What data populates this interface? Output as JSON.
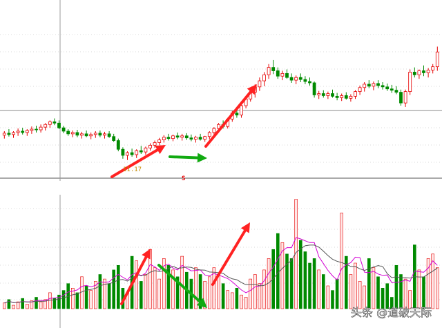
{
  "chart_data": [
    {
      "panel": "price",
      "type": "candlestick",
      "title": "",
      "xlabel": "",
      "ylabel": "",
      "low_label": "11.17",
      "marker_label": "S",
      "ylim": [
        10.9,
        13.4
      ],
      "grid": true,
      "candles": [
        {
          "o": 11.54,
          "h": 11.6,
          "l": 11.49,
          "c": 11.57
        },
        {
          "o": 11.57,
          "h": 11.63,
          "l": 11.52,
          "c": 11.55
        },
        {
          "o": 11.55,
          "h": 11.6,
          "l": 11.5,
          "c": 11.58
        },
        {
          "o": 11.58,
          "h": 11.64,
          "l": 11.53,
          "c": 11.6
        },
        {
          "o": 11.6,
          "h": 11.65,
          "l": 11.55,
          "c": 11.58
        },
        {
          "o": 11.58,
          "h": 11.63,
          "l": 11.53,
          "c": 11.61
        },
        {
          "o": 11.61,
          "h": 11.67,
          "l": 11.56,
          "c": 11.63
        },
        {
          "o": 11.63,
          "h": 11.68,
          "l": 11.58,
          "c": 11.62
        },
        {
          "o": 11.62,
          "h": 11.7,
          "l": 11.58,
          "c": 11.66
        },
        {
          "o": 11.66,
          "h": 11.72,
          "l": 11.61,
          "c": 11.7
        },
        {
          "o": 11.7,
          "h": 11.76,
          "l": 11.65,
          "c": 11.74
        },
        {
          "o": 11.74,
          "h": 11.79,
          "l": 11.69,
          "c": 11.72
        },
        {
          "o": 11.72,
          "h": 11.76,
          "l": 11.63,
          "c": 11.65
        },
        {
          "o": 11.65,
          "h": 11.68,
          "l": 11.57,
          "c": 11.6
        },
        {
          "o": 11.6,
          "h": 11.63,
          "l": 11.53,
          "c": 11.56
        },
        {
          "o": 11.56,
          "h": 11.61,
          "l": 11.51,
          "c": 11.58
        },
        {
          "o": 11.58,
          "h": 11.62,
          "l": 11.51,
          "c": 11.54
        },
        {
          "o": 11.54,
          "h": 11.59,
          "l": 11.49,
          "c": 11.56
        },
        {
          "o": 11.56,
          "h": 11.61,
          "l": 11.51,
          "c": 11.53
        },
        {
          "o": 11.53,
          "h": 11.58,
          "l": 11.48,
          "c": 11.55
        },
        {
          "o": 11.55,
          "h": 11.6,
          "l": 11.5,
          "c": 11.57
        },
        {
          "o": 11.57,
          "h": 11.61,
          "l": 11.51,
          "c": 11.54
        },
        {
          "o": 11.54,
          "h": 11.59,
          "l": 11.49,
          "c": 11.56
        },
        {
          "o": 11.56,
          "h": 11.6,
          "l": 11.5,
          "c": 11.52
        },
        {
          "o": 11.52,
          "h": 11.56,
          "l": 11.44,
          "c": 11.46
        },
        {
          "o": 11.46,
          "h": 11.49,
          "l": 11.3,
          "c": 11.33
        },
        {
          "o": 11.33,
          "h": 11.36,
          "l": 11.19,
          "c": 11.24
        },
        {
          "o": 11.24,
          "h": 11.3,
          "l": 11.17,
          "c": 11.28
        },
        {
          "o": 11.28,
          "h": 11.34,
          "l": 11.22,
          "c": 11.25
        },
        {
          "o": 11.25,
          "h": 11.33,
          "l": 11.2,
          "c": 11.31
        },
        {
          "o": 11.31,
          "h": 11.38,
          "l": 11.26,
          "c": 11.29
        },
        {
          "o": 11.29,
          "h": 11.37,
          "l": 11.25,
          "c": 11.35
        },
        {
          "o": 11.35,
          "h": 11.42,
          "l": 11.31,
          "c": 11.39
        },
        {
          "o": 11.39,
          "h": 11.46,
          "l": 11.35,
          "c": 11.43
        },
        {
          "o": 11.43,
          "h": 11.5,
          "l": 11.39,
          "c": 11.47
        },
        {
          "o": 11.47,
          "h": 11.54,
          "l": 11.43,
          "c": 11.51
        },
        {
          "o": 11.51,
          "h": 11.56,
          "l": 11.46,
          "c": 11.49
        },
        {
          "o": 11.49,
          "h": 11.55,
          "l": 11.45,
          "c": 11.53
        },
        {
          "o": 11.53,
          "h": 11.58,
          "l": 11.48,
          "c": 11.51
        },
        {
          "o": 11.51,
          "h": 11.56,
          "l": 11.46,
          "c": 11.53
        },
        {
          "o": 11.53,
          "h": 11.57,
          "l": 11.47,
          "c": 11.5
        },
        {
          "o": 11.5,
          "h": 11.55,
          "l": 11.45,
          "c": 11.48
        },
        {
          "o": 11.48,
          "h": 11.53,
          "l": 11.43,
          "c": 11.51
        },
        {
          "o": 11.51,
          "h": 11.56,
          "l": 11.46,
          "c": 11.48
        },
        {
          "o": 11.48,
          "h": 11.53,
          "l": 11.44,
          "c": 11.52
        },
        {
          "o": 11.52,
          "h": 11.6,
          "l": 11.48,
          "c": 11.58
        },
        {
          "o": 11.58,
          "h": 11.66,
          "l": 11.54,
          "c": 11.64
        },
        {
          "o": 11.64,
          "h": 11.72,
          "l": 11.6,
          "c": 11.7
        },
        {
          "o": 11.7,
          "h": 11.76,
          "l": 11.64,
          "c": 11.67
        },
        {
          "o": 11.67,
          "h": 11.8,
          "l": 11.64,
          "c": 11.78
        },
        {
          "o": 11.78,
          "h": 11.9,
          "l": 11.74,
          "c": 11.87
        },
        {
          "o": 11.87,
          "h": 11.95,
          "l": 11.8,
          "c": 11.84
        },
        {
          "o": 11.84,
          "h": 12.02,
          "l": 11.8,
          "c": 11.98
        },
        {
          "o": 11.98,
          "h": 12.12,
          "l": 11.94,
          "c": 12.08
        },
        {
          "o": 12.08,
          "h": 12.22,
          "l": 12.04,
          "c": 12.18
        },
        {
          "o": 12.18,
          "h": 12.3,
          "l": 12.1,
          "c": 12.26
        },
        {
          "o": 12.26,
          "h": 12.4,
          "l": 12.2,
          "c": 12.35
        },
        {
          "o": 12.35,
          "h": 12.48,
          "l": 12.27,
          "c": 12.44
        },
        {
          "o": 12.44,
          "h": 12.6,
          "l": 12.38,
          "c": 12.55
        },
        {
          "o": 12.55,
          "h": 12.66,
          "l": 12.45,
          "c": 12.5
        },
        {
          "o": 12.5,
          "h": 12.55,
          "l": 12.38,
          "c": 12.42
        },
        {
          "o": 12.42,
          "h": 12.5,
          "l": 12.36,
          "c": 12.46
        },
        {
          "o": 12.46,
          "h": 12.52,
          "l": 12.38,
          "c": 12.4
        },
        {
          "o": 12.4,
          "h": 12.46,
          "l": 12.32,
          "c": 12.36
        },
        {
          "o": 12.36,
          "h": 12.43,
          "l": 12.3,
          "c": 12.4
        },
        {
          "o": 12.4,
          "h": 12.46,
          "l": 12.33,
          "c": 12.37
        },
        {
          "o": 12.37,
          "h": 12.42,
          "l": 12.3,
          "c": 12.34
        },
        {
          "o": 12.34,
          "h": 12.4,
          "l": 12.28,
          "c": 12.32
        },
        {
          "o": 12.32,
          "h": 12.34,
          "l": 12.1,
          "c": 12.14
        },
        {
          "o": 12.14,
          "h": 12.2,
          "l": 12.08,
          "c": 12.16
        },
        {
          "o": 12.16,
          "h": 12.21,
          "l": 12.1,
          "c": 12.13
        },
        {
          "o": 12.13,
          "h": 12.19,
          "l": 12.08,
          "c": 12.16
        },
        {
          "o": 12.16,
          "h": 12.22,
          "l": 12.1,
          "c": 12.12
        },
        {
          "o": 12.12,
          "h": 12.17,
          "l": 12.06,
          "c": 12.1
        },
        {
          "o": 12.1,
          "h": 12.16,
          "l": 12.05,
          "c": 12.13
        },
        {
          "o": 12.13,
          "h": 12.18,
          "l": 12.07,
          "c": 12.09
        },
        {
          "o": 12.09,
          "h": 12.15,
          "l": 12.04,
          "c": 12.12
        },
        {
          "o": 12.12,
          "h": 12.21,
          "l": 12.08,
          "c": 12.19
        },
        {
          "o": 12.19,
          "h": 12.28,
          "l": 12.14,
          "c": 12.25
        },
        {
          "o": 12.25,
          "h": 12.33,
          "l": 12.19,
          "c": 12.3
        },
        {
          "o": 12.3,
          "h": 12.36,
          "l": 12.24,
          "c": 12.27
        },
        {
          "o": 12.27,
          "h": 12.34,
          "l": 12.21,
          "c": 12.31
        },
        {
          "o": 12.31,
          "h": 12.36,
          "l": 12.24,
          "c": 12.28
        },
        {
          "o": 12.28,
          "h": 12.33,
          "l": 12.22,
          "c": 12.26
        },
        {
          "o": 12.26,
          "h": 12.31,
          "l": 12.2,
          "c": 12.23
        },
        {
          "o": 12.23,
          "h": 12.29,
          "l": 12.17,
          "c": 12.21
        },
        {
          "o": 12.21,
          "h": 12.27,
          "l": 12.15,
          "c": 12.18
        },
        {
          "o": 12.18,
          "h": 12.22,
          "l": 11.98,
          "c": 12.02
        },
        {
          "o": 12.02,
          "h": 12.22,
          "l": 11.96,
          "c": 12.19
        },
        {
          "o": 12.19,
          "h": 12.52,
          "l": 12.14,
          "c": 12.48
        },
        {
          "o": 12.48,
          "h": 12.55,
          "l": 12.4,
          "c": 12.44
        },
        {
          "o": 12.44,
          "h": 12.52,
          "l": 12.38,
          "c": 12.5
        },
        {
          "o": 12.5,
          "h": 12.58,
          "l": 12.42,
          "c": 12.47
        },
        {
          "o": 12.47,
          "h": 12.54,
          "l": 12.4,
          "c": 12.51
        },
        {
          "o": 12.51,
          "h": 12.6,
          "l": 12.46,
          "c": 12.56
        },
        {
          "o": 12.56,
          "h": 12.86,
          "l": 12.5,
          "c": 12.78
        }
      ]
    },
    {
      "panel": "volume",
      "type": "bar",
      "title": "",
      "ylim": [
        0,
        100
      ],
      "grid": true,
      "ma_lines": [
        "magenta",
        "dark"
      ],
      "values": [
        5,
        8,
        3,
        6,
        9,
        4,
        7,
        10,
        6,
        8,
        14,
        9,
        12,
        16,
        22,
        18,
        14,
        28,
        20,
        16,
        24,
        30,
        26,
        22,
        34,
        38,
        18,
        14,
        46,
        42,
        24,
        30,
        52,
        36,
        26,
        44,
        38,
        34,
        28,
        46,
        32,
        26,
        36,
        30,
        24,
        28,
        36,
        30,
        22,
        16,
        14,
        18,
        12,
        10,
        26,
        30,
        22,
        34,
        44,
        52,
        66,
        58,
        48,
        44,
        96,
        60,
        50,
        40,
        44,
        34,
        30,
        20,
        16,
        26,
        84,
        46,
        30,
        40,
        24,
        20,
        44,
        36,
        28,
        18,
        22,
        10,
        38,
        30,
        26,
        16,
        56,
        34,
        28,
        44,
        48,
        36
      ]
    }
  ],
  "annotations": {
    "arrows": [
      {
        "color": "red",
        "panel": "price"
      },
      {
        "color": "red",
        "panel": "price"
      },
      {
        "color": "green",
        "panel": "price"
      },
      {
        "color": "red",
        "panel": "volume"
      },
      {
        "color": "red",
        "panel": "volume"
      },
      {
        "color": "green",
        "panel": "volume"
      }
    ]
  },
  "watermark": "头条 @道破天际",
  "colors": {
    "up": "#e60000",
    "down": "#008a00",
    "up_volume_fill": "#ffe6e6",
    "magenta_line": "#d400d4",
    "dark_line": "#555555",
    "arrow_red": "#ff2222",
    "arrow_green": "#11aa11",
    "grid": "#d9d9d9",
    "axis": "#888888",
    "label": "#c48a00"
  }
}
